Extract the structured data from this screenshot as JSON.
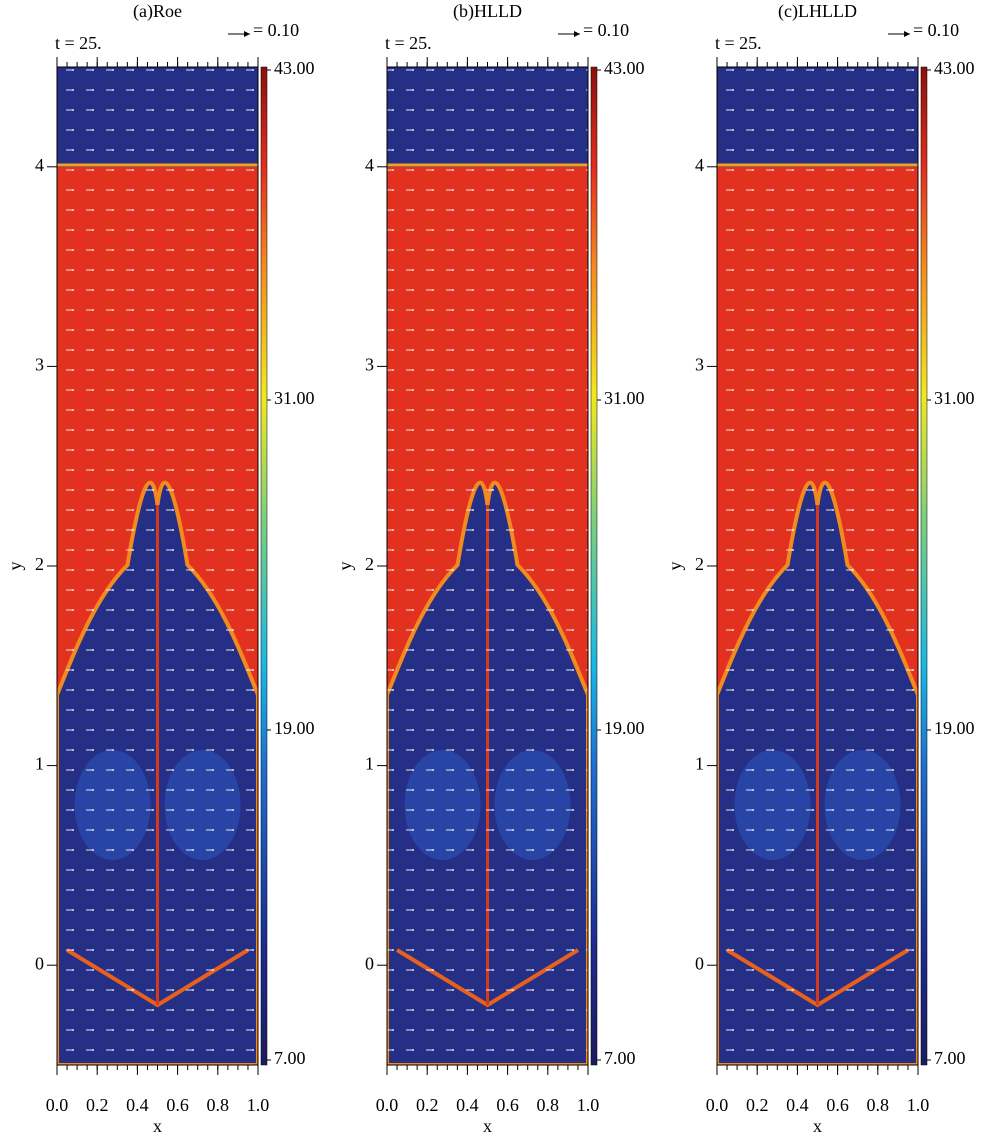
{
  "chart_data": [
    {
      "type": "heatmap",
      "title": "(a)Roe",
      "time_label": "t = 25.",
      "vector_key": {
        "value": 0.1,
        "label": "= 0.10"
      },
      "x_label": "x",
      "y_label": "y",
      "xlim": [
        0,
        1
      ],
      "ylim": [
        -0.5,
        4.5
      ],
      "xticks": [
        {
          "value": 0,
          "label": "0.0"
        },
        {
          "value": 0.2,
          "label": "0.2"
        },
        {
          "value": 0.4,
          "label": "0.4"
        },
        {
          "value": 0.6,
          "label": "0.6"
        },
        {
          "value": 0.8,
          "label": "0.8"
        },
        {
          "value": 1,
          "label": "1.0"
        }
      ],
      "yticks": [
        0,
        1,
        2,
        3,
        4
      ],
      "clim": [
        7,
        43
      ],
      "cticks": [
        {
          "value": 7,
          "label": "7.00"
        },
        {
          "value": 19,
          "label": "19.00"
        },
        {
          "value": 31,
          "label": "31.00"
        },
        {
          "value": 43,
          "label": "43.00"
        }
      ]
    },
    {
      "type": "heatmap",
      "title": "(b)HLLD",
      "time_label": "t = 25.",
      "vector_key": {
        "value": 0.1,
        "label": "= 0.10"
      },
      "x_label": "x",
      "y_label": "y",
      "xlim": [
        0,
        1
      ],
      "ylim": [
        -0.5,
        4.5
      ],
      "xticks": [
        {
          "value": 0,
          "label": "0.0"
        },
        {
          "value": 0.2,
          "label": "0.2"
        },
        {
          "value": 0.4,
          "label": "0.4"
        },
        {
          "value": 0.6,
          "label": "0.6"
        },
        {
          "value": 0.8,
          "label": "0.8"
        },
        {
          "value": 1,
          "label": "1.0"
        }
      ],
      "yticks": [
        0,
        1,
        2,
        3,
        4
      ],
      "clim": [
        7,
        43
      ],
      "cticks": [
        {
          "value": 7,
          "label": "7.00"
        },
        {
          "value": 19,
          "label": "19.00"
        },
        {
          "value": 31,
          "label": "31.00"
        },
        {
          "value": 43,
          "label": "43.00"
        }
      ]
    },
    {
      "type": "heatmap",
      "title": "(c)LHLLD",
      "time_label": "t = 25.",
      "vector_key": {
        "value": 0.1,
        "label": "= 0.10"
      },
      "x_label": "x",
      "y_label": "y",
      "xlim": [
        0,
        1
      ],
      "ylim": [
        -0.5,
        4.5
      ],
      "xticks": [
        {
          "value": 0,
          "label": "0.0"
        },
        {
          "value": 0.2,
          "label": "0.2"
        },
        {
          "value": 0.4,
          "label": "0.4"
        },
        {
          "value": 0.6,
          "label": "0.6"
        },
        {
          "value": 0.8,
          "label": "0.8"
        },
        {
          "value": 1,
          "label": "1.0"
        }
      ],
      "yticks": [
        0,
        1,
        2,
        3,
        4
      ],
      "clim": [
        7,
        43
      ],
      "cticks": [
        {
          "value": 7,
          "label": "7.00"
        },
        {
          "value": 19,
          "label": "19.00"
        },
        {
          "value": 31,
          "label": "31.00"
        },
        {
          "value": 43,
          "label": "43.00"
        }
      ]
    }
  ]
}
